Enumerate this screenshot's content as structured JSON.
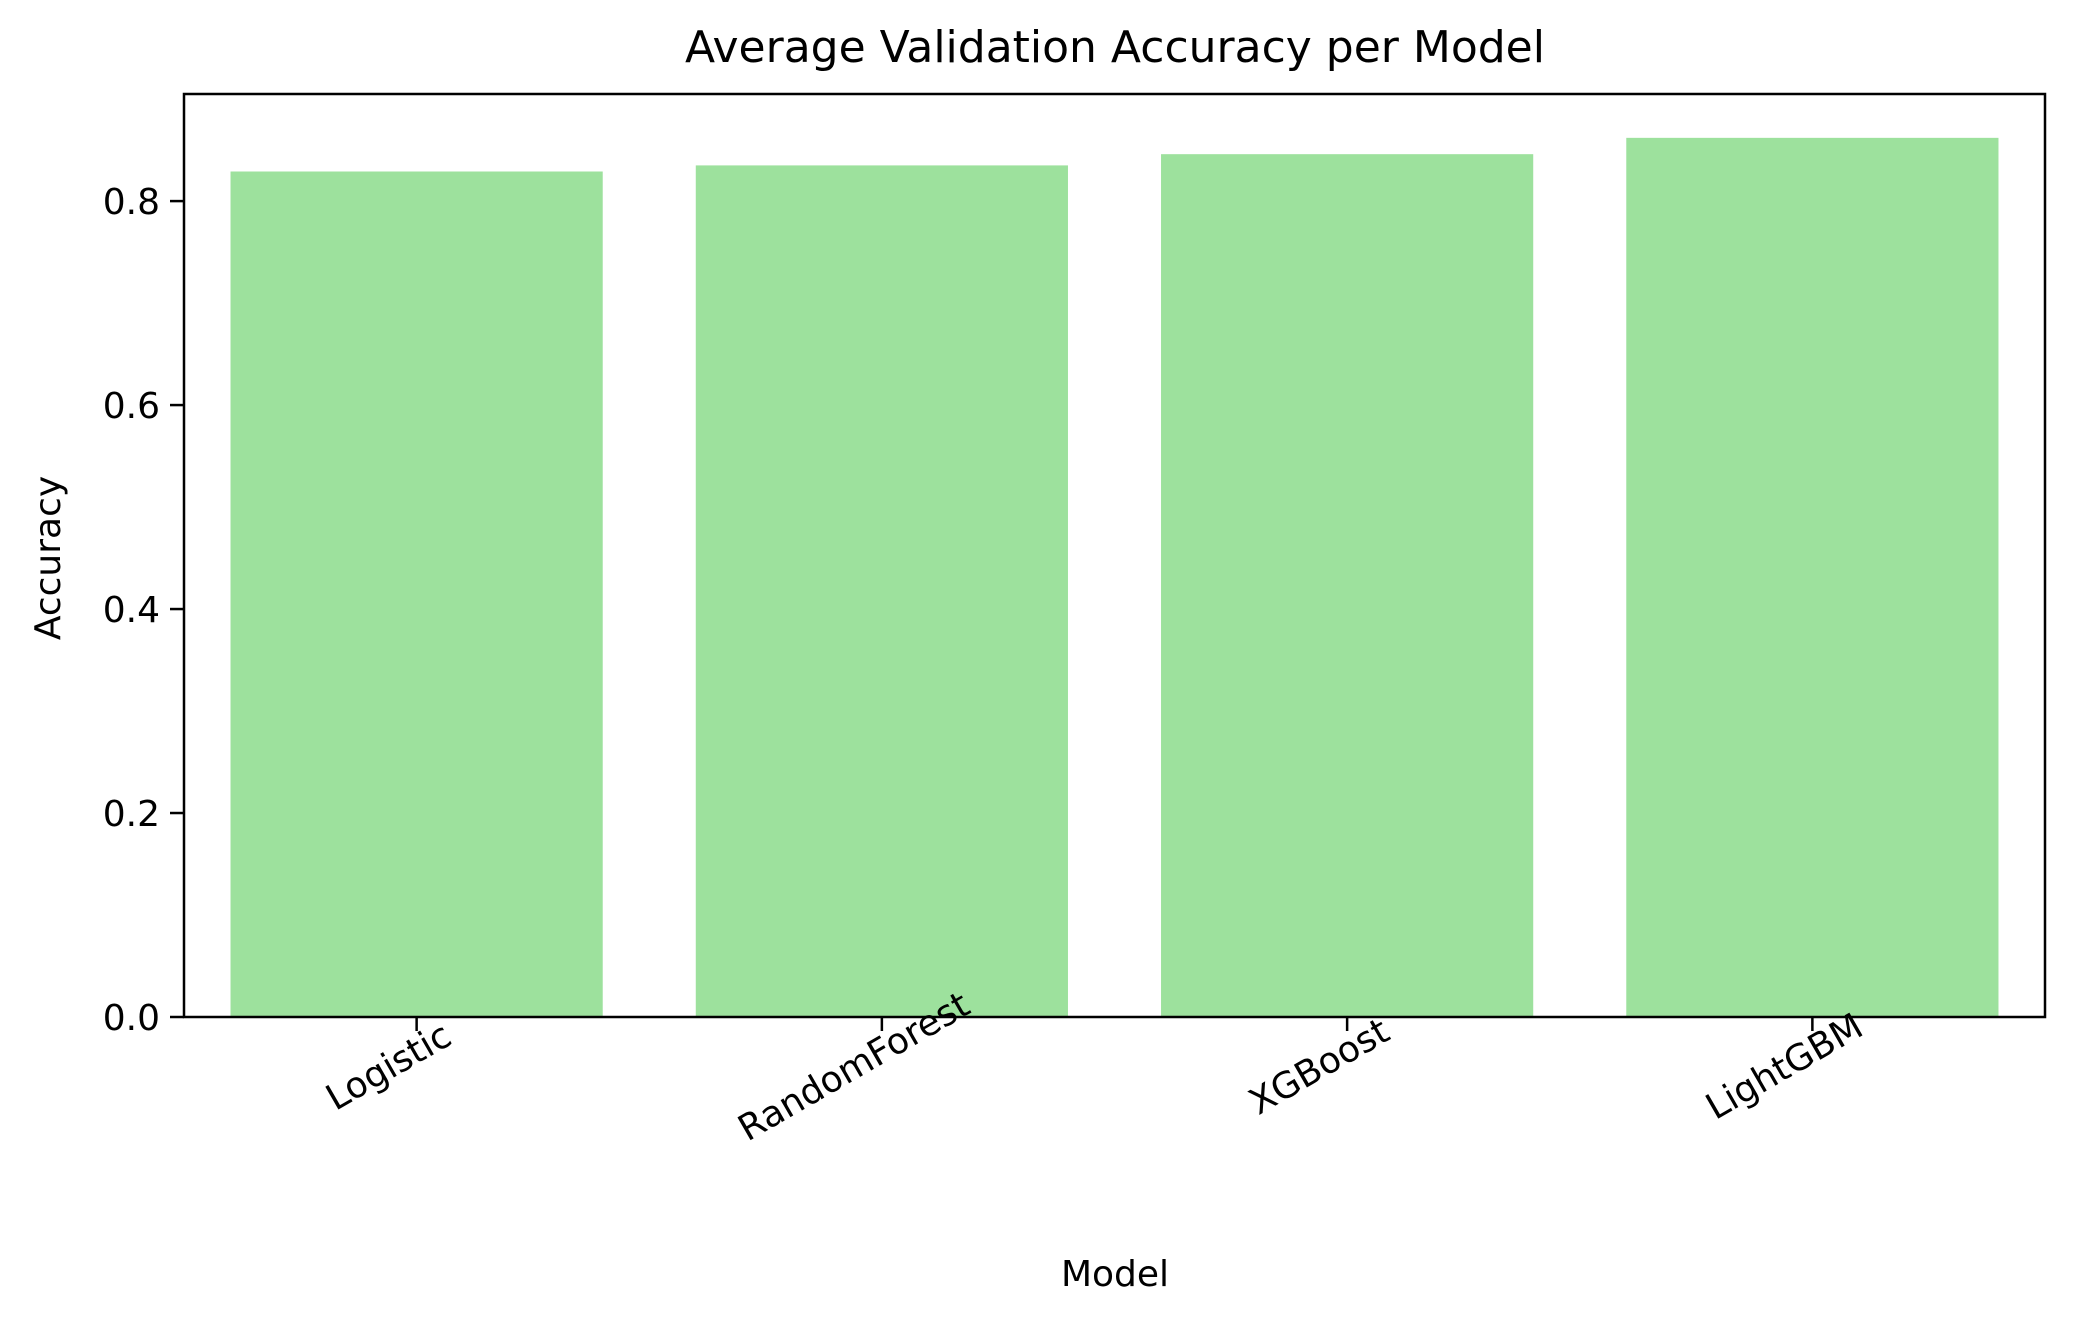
{
  "chart_data": {
    "type": "bar",
    "title": "Average Validation Accuracy per Model",
    "xlabel": "Model",
    "ylabel": "Accuracy",
    "categories": [
      "Logistic",
      "RandomForest",
      "XGBoost",
      "LightGBM"
    ],
    "values": [
      0.829,
      0.835,
      0.846,
      0.862
    ],
    "ylim": [
      0,
      0.905
    ],
    "yticks": [
      "0.0",
      "0.2",
      "0.4",
      "0.6",
      "0.8"
    ],
    "grid": false,
    "bar_color": "#9de19d",
    "xtick_rotation": -30
  }
}
